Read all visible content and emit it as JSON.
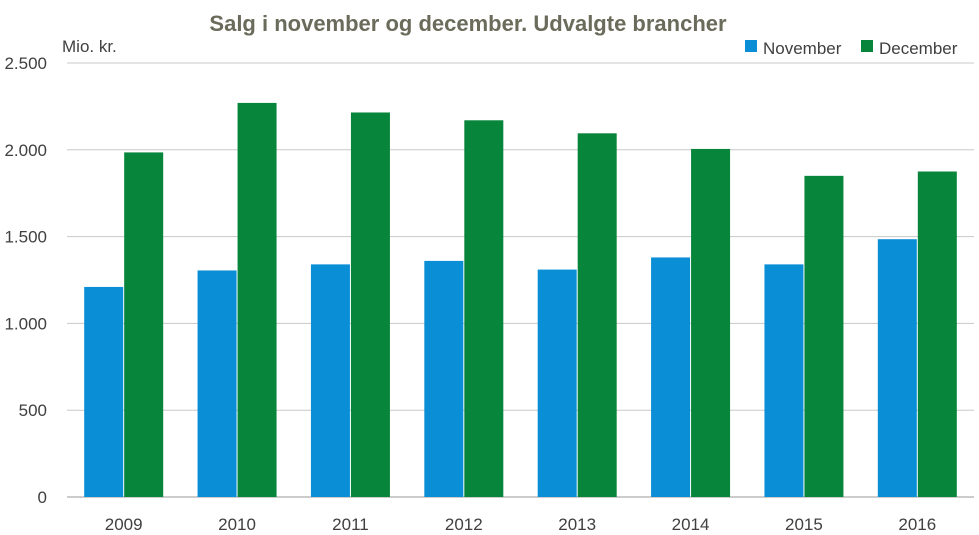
{
  "chart_data": {
    "type": "bar",
    "title": "Salg i november og december. Udvalgte brancher",
    "ylabel": "Mio. kr.",
    "xlabel": "",
    "categories": [
      "2009",
      "2010",
      "2011",
      "2012",
      "2013",
      "2014",
      "2015",
      "2016"
    ],
    "series": [
      {
        "name": "November",
        "color": "#0a8fd6",
        "values": [
          1210,
          1305,
          1340,
          1360,
          1310,
          1380,
          1340,
          1485
        ]
      },
      {
        "name": "December",
        "color": "#07853b",
        "values": [
          1985,
          2270,
          2215,
          2170,
          2095,
          2005,
          1850,
          1875
        ]
      }
    ],
    "ylim": [
      0,
      2500
    ],
    "yticks": [
      0,
      500,
      1000,
      1500,
      2000,
      2500
    ],
    "ytick_labels": [
      "0",
      "500",
      "1.000",
      "1.500",
      "2.000",
      "2.500"
    ],
    "grid": true,
    "legend_position": "top-right"
  }
}
